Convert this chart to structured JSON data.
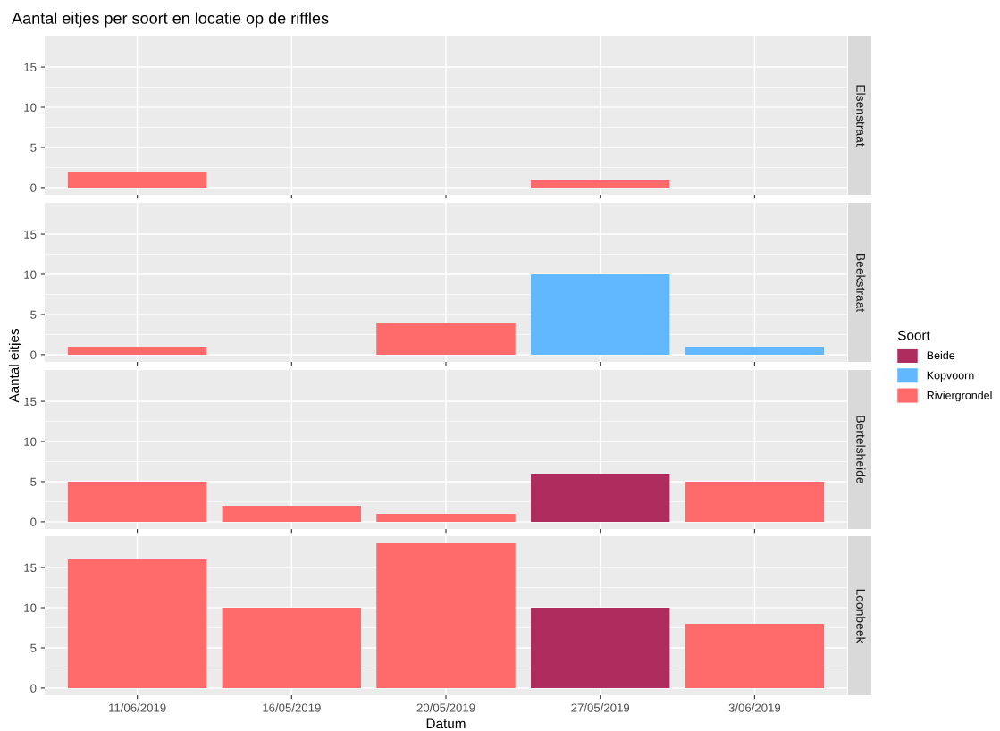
{
  "chart_data": [
    {
      "type": "bar",
      "title": "Aantal eitjes per soort en locatie op de riffles",
      "y2label": "Elsenstraat",
      "ylim": [
        -0.9,
        18.9
      ],
      "yticks": [
        0,
        5,
        10,
        15
      ],
      "grid": true,
      "tick_labels": "y",
      "series": [
        {
          "color": "#ff6b6b",
          "values": [
            2,
            null,
            null,
            1,
            null
          ]
        }
      ]
    },
    {
      "type": "bar",
      "y2label": "Beekstraat",
      "ylim": [
        -0.9,
        18.9
      ],
      "yticks": [
        0,
        5,
        10,
        15
      ],
      "grid": true,
      "tick_labels": "y",
      "legend": "right",
      "legend_title": "Soort",
      "series": [
        {
          "name": "Beide",
          "color": "#ae2d5e",
          "values": [
            null,
            null,
            null,
            null,
            null
          ]
        },
        {
          "name": "Kopvoorn",
          "color": "#61b8ff",
          "values": [
            null,
            null,
            null,
            10,
            1
          ]
        },
        {
          "name": "Riviergrondel",
          "color": "#ff6b6b",
          "values": [
            1,
            null,
            4,
            null,
            null
          ]
        }
      ]
    },
    {
      "type": "bar",
      "y2label": "Bertelsheide",
      "ylabel": "Aantal eitjes",
      "ylim": [
        -0.9,
        18.9
      ],
      "yticks": [
        0,
        5,
        10,
        15
      ],
      "grid": true,
      "tick_labels": "y",
      "series": [
        {
          "color": "#ae2d5e",
          "values": [
            null,
            null,
            null,
            6,
            null
          ]
        },
        {
          "color": "#ff6b6b",
          "values": [
            5,
            2,
            1,
            null,
            5
          ]
        }
      ]
    },
    {
      "type": "bar",
      "y2label": "Loonbeek",
      "xlabel": "Datum",
      "categories": [
        "11/06/2019",
        "16/05/2019",
        "20/05/2019",
        "27/05/2019",
        "3/06/2019"
      ],
      "ylim": [
        -0.9,
        18.9
      ],
      "yticks": [
        0,
        5,
        10,
        15
      ],
      "grid": true,
      "series": [
        {
          "color": "#ae2d5e",
          "values": [
            null,
            null,
            null,
            10,
            null
          ]
        },
        {
          "color": "#ff6b6b",
          "values": [
            16,
            10,
            18,
            null,
            8
          ]
        }
      ]
    }
  ]
}
